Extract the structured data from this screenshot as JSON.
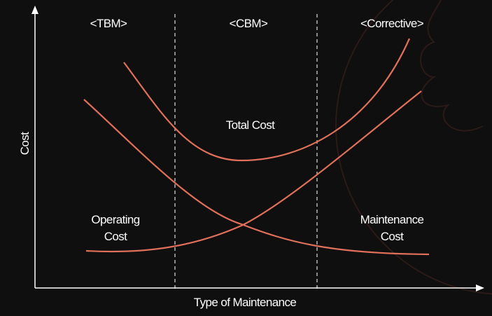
{
  "diagram": {
    "regions": [
      "<TBM>",
      "<CBM>",
      "<Corrective>"
    ],
    "x_axis_label": "Type of Maintenance",
    "y_axis_label": "Cost",
    "curves": {
      "total": "Total Cost",
      "operating": [
        "Operating",
        "Cost"
      ],
      "maintenance": [
        "Maintenance",
        "Cost"
      ]
    },
    "curve_color": "#e0705a",
    "axis_color": "#ffffff",
    "background": "#0f0f0f"
  }
}
